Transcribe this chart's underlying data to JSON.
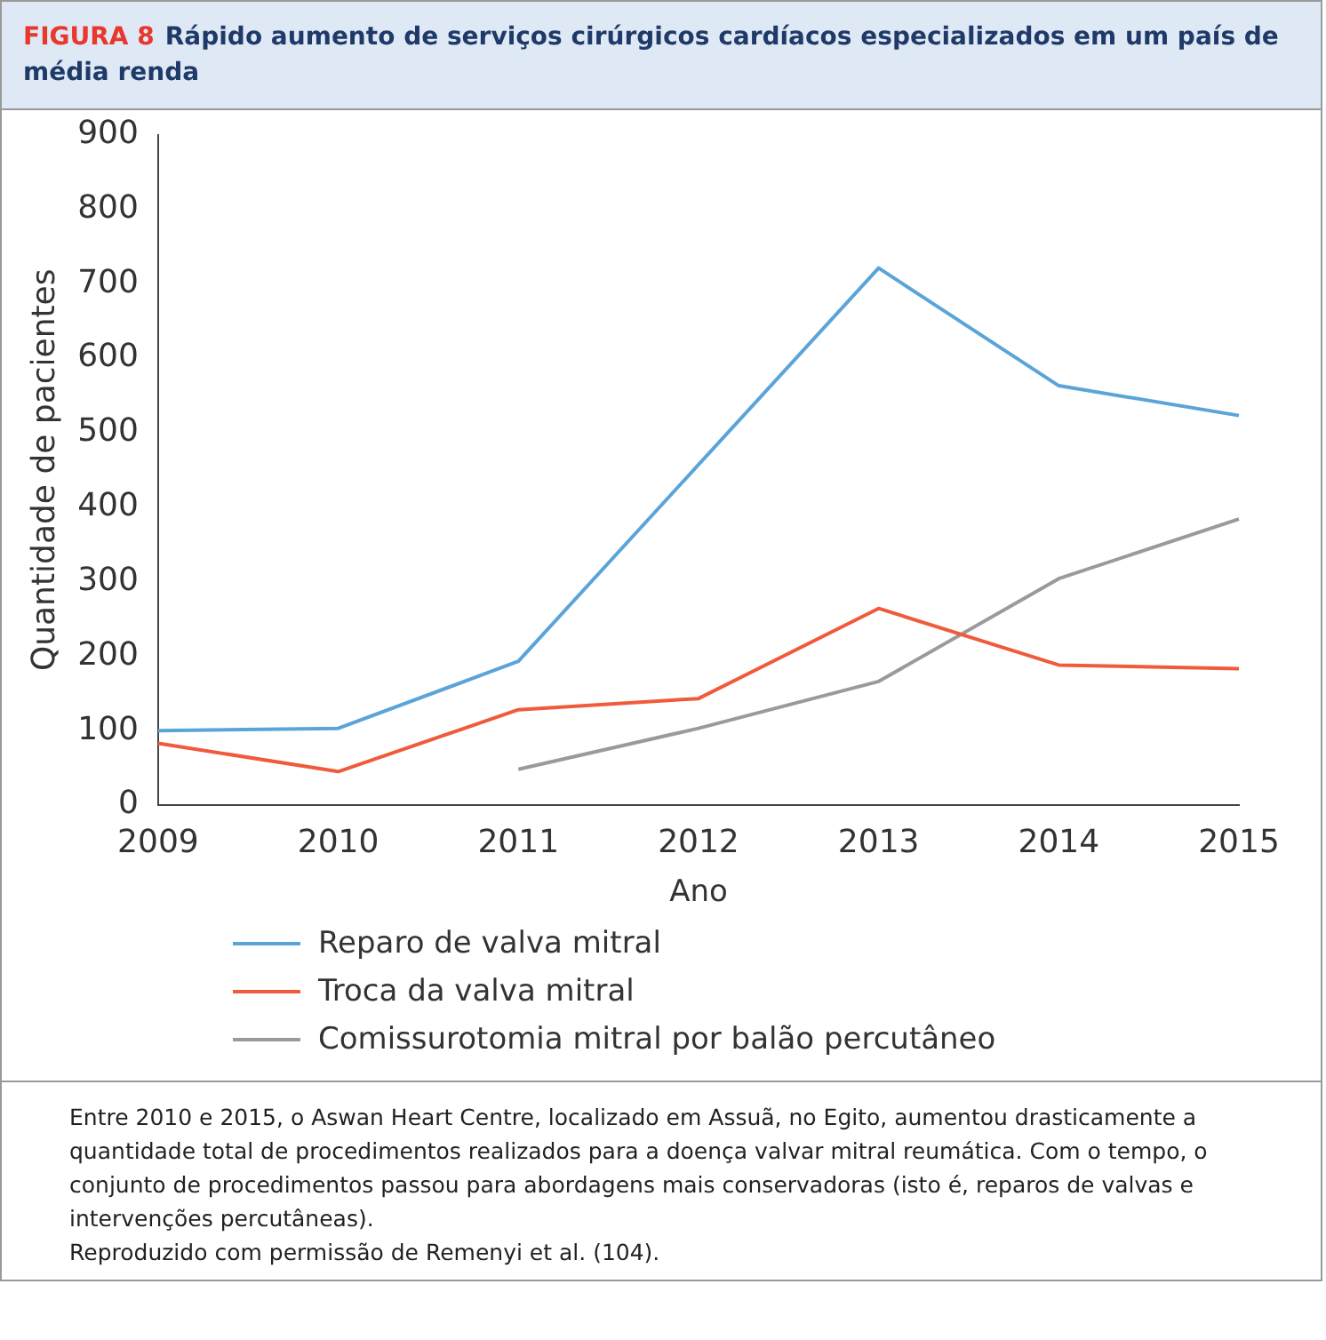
{
  "chart_data": {
    "type": "line",
    "title": "FIGURA 8",
    "subtitle": "Rápido aumento de serviços cirúrgicos cardíacos especializados em um país de média renda",
    "xlabel": "Ano",
    "ylabel": "Quantidade de pacientes",
    "categories": [
      "2009",
      "2010",
      "2011",
      "2012",
      "2013",
      "2014",
      "2015"
    ],
    "series": [
      {
        "name": "Reparo de valva mitral",
        "color": "#5ba4d9",
        "values": [
          100,
          103,
          193,
          457,
          721,
          563,
          523
        ]
      },
      {
        "name": "Troca da valva mitral",
        "color": "#ef5b3b",
        "values": [
          83,
          45,
          128,
          143,
          264,
          188,
          183
        ]
      },
      {
        "name": "Comissurotomia mitral por balão percutâneo",
        "color": "#9a9a9a",
        "values": [
          null,
          null,
          48,
          103,
          166,
          304,
          384
        ]
      }
    ],
    "ylim": [
      0,
      900
    ],
    "yticks": [
      0,
      100,
      200,
      300,
      400,
      500,
      600,
      700,
      800,
      900
    ],
    "grid": false,
    "legend": "bottom",
    "marker": "none",
    "line_style": "solid",
    "annotations": [
      "Entre 2010 e 2015, o Aswan Heart Centre, localizado em Assuã, no Egito, aumentou drasticamente a quantidade total de procedimentos realizados para a doença valvar mitral reumática. Com o tempo, o conjunto de procedimentos passou para abordagens mais conservadoras (isto é, reparos de valvas e intervenções percutâneas).",
      "Reproduzido com permissão de Remenyi et al. (104)."
    ]
  }
}
